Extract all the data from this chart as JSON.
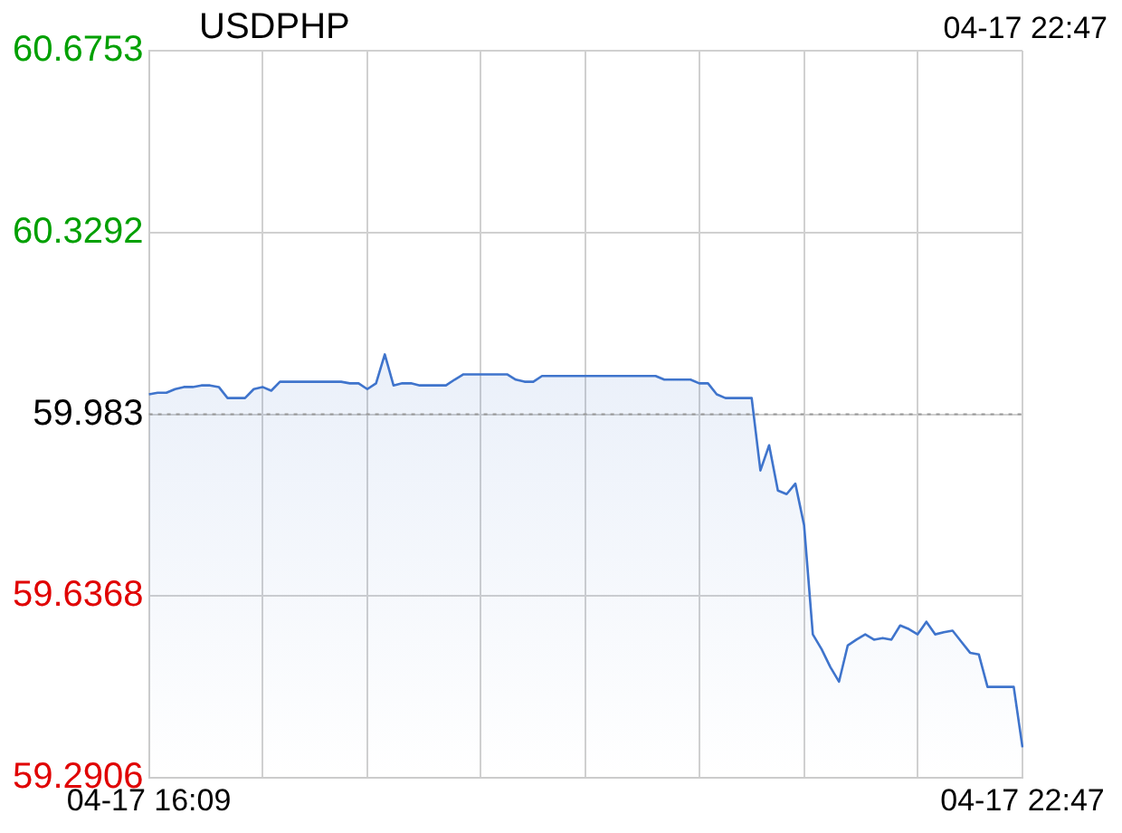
{
  "chart_data": {
    "type": "area",
    "title": "USDPHP",
    "annotations": [
      "04-17 22:47"
    ],
    "categories": [
      "04-17 16:09",
      null,
      null,
      null,
      null,
      null,
      null,
      null,
      null,
      null,
      null,
      null,
      null,
      null,
      null,
      null,
      null,
      null,
      null,
      null,
      null,
      null,
      null,
      null,
      null,
      null,
      null,
      null,
      null,
      null,
      null,
      null,
      null,
      null,
      null,
      null,
      null,
      null,
      null,
      null,
      null,
      null,
      null,
      null,
      null,
      null,
      null,
      null,
      null,
      null,
      null,
      null,
      null,
      null,
      null,
      null,
      null,
      null,
      null,
      null,
      null,
      null,
      null,
      null,
      null,
      null,
      null,
      null,
      null,
      null,
      null,
      null,
      null,
      null,
      null,
      null,
      null,
      null,
      null,
      null,
      null,
      null,
      null,
      null,
      null,
      null,
      null,
      null,
      null,
      null,
      null,
      null,
      null,
      null,
      null,
      null,
      null,
      null,
      null,
      null,
      "04-17 22:47"
    ],
    "series": [
      {
        "color": "#3f74cc",
        "values": [
          60.021,
          60.024,
          60.024,
          60.031,
          60.035,
          60.035,
          60.038,
          60.038,
          60.035,
          60.014,
          60.014,
          60.014,
          60.031,
          60.035,
          60.028,
          60.045,
          60.045,
          60.045,
          60.045,
          60.045,
          60.045,
          60.045,
          60.045,
          60.042,
          60.042,
          60.031,
          60.042,
          60.097,
          60.038,
          60.042,
          60.042,
          60.038,
          60.038,
          60.038,
          60.038,
          60.049,
          60.059,
          60.059,
          60.059,
          60.059,
          60.059,
          60.059,
          60.049,
          60.045,
          60.045,
          60.056,
          60.056,
          60.056,
          60.056,
          60.056,
          60.056,
          60.056,
          60.056,
          60.056,
          60.056,
          60.056,
          60.056,
          60.056,
          60.056,
          60.049,
          60.049,
          60.049,
          60.049,
          60.042,
          60.042,
          60.021,
          60.014,
          60.014,
          60.014,
          60.014,
          59.876,
          59.924,
          59.838,
          59.831,
          59.851,
          59.772,
          59.564,
          59.536,
          59.502,
          59.474,
          59.543,
          59.554,
          59.564,
          59.554,
          59.557,
          59.554,
          59.581,
          59.574,
          59.564,
          59.588,
          59.564,
          59.568,
          59.571,
          59.55,
          59.529,
          59.526,
          59.464,
          59.464,
          59.464,
          59.464,
          59.349
        ]
      }
    ],
    "ylim": [
      59.2906,
      60.6753
    ],
    "yticks": [
      59.2906,
      59.6368,
      59.983,
      60.3292,
      60.6753
    ],
    "ref_lines": [
      {
        "axis": "y",
        "value": 59.983,
        "color": "#999999",
        "line_style": "dotted"
      }
    ],
    "grid": true,
    "line_style": "solid",
    "marker": "none"
  }
}
